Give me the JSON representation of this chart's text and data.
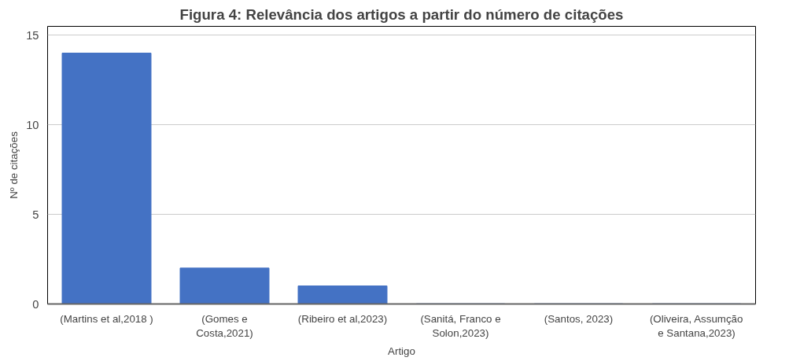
{
  "chart_data": {
    "type": "bar",
    "title": "Figura 4: Relevância dos artigos a partir do número de citações",
    "xlabel": "Artigo",
    "ylabel": "Nº de citações",
    "categories": [
      "(Martins et al,2018 )",
      "(Gomes e\nCosta,2021)",
      "(Ribeiro et al,2023)",
      "(Sanitá, Franco e\nSolon,2023)",
      "(Santos, 2023)",
      "(Oliveira, Assumção\ne Santana,2023)"
    ],
    "series": [
      {
        "color": "#4472c4",
        "values": [
          14,
          2,
          1,
          0,
          0,
          0
        ]
      }
    ],
    "ylim": [
      0,
      15.5
    ],
    "yticks": [
      0,
      5,
      10,
      15
    ],
    "grid": "y"
  }
}
